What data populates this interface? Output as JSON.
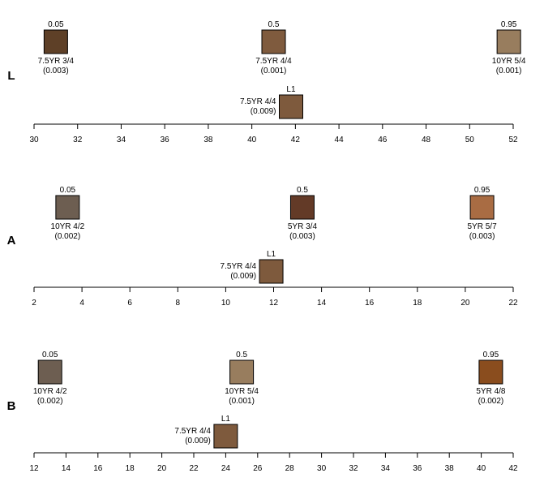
{
  "chart_data": [
    {
      "type": "scatter",
      "panel_label": "L",
      "xlim": [
        30,
        52
      ],
      "ticks": [
        30,
        32,
        34,
        36,
        38,
        40,
        42,
        44,
        46,
        48,
        50,
        52
      ],
      "quantiles": [
        {
          "q": "0.05",
          "x": 31.0,
          "munsell": "7.5YR 3/4",
          "de": "(0.003)",
          "color": "#5e4027"
        },
        {
          "q": "0.5",
          "x": 41.0,
          "munsell": "7.5YR 4/4",
          "de": "(0.001)",
          "color": "#7f5b3e"
        },
        {
          "q": "0.95",
          "x": 51.8,
          "munsell": "10YR 5/4",
          "de": "(0.001)",
          "color": "#987d5e"
        }
      ],
      "l1": {
        "label": "L1",
        "x": 41.8,
        "munsell": "7.5YR 4/4",
        "de": "(0.009)",
        "color": "#7e5a3d"
      }
    },
    {
      "type": "scatter",
      "panel_label": "A",
      "xlim": [
        2,
        22
      ],
      "ticks": [
        2,
        4,
        6,
        8,
        10,
        12,
        14,
        16,
        18,
        20,
        22
      ],
      "quantiles": [
        {
          "q": "0.05",
          "x": 3.4,
          "munsell": "10YR 4/2",
          "de": "(0.002)",
          "color": "#6d5e51"
        },
        {
          "q": "0.5",
          "x": 13.2,
          "munsell": "5YR 3/4",
          "de": "(0.003)",
          "color": "#633a27"
        },
        {
          "q": "0.95",
          "x": 20.7,
          "munsell": "5YR 5/7",
          "de": "(0.003)",
          "color": "#a96c43"
        }
      ],
      "l1": {
        "label": "L1",
        "x": 11.9,
        "munsell": "7.5YR 4/4",
        "de": "(0.009)",
        "color": "#7e5a3d"
      }
    },
    {
      "type": "scatter",
      "panel_label": "B",
      "xlim": [
        12,
        42
      ],
      "ticks": [
        12,
        14,
        16,
        18,
        20,
        22,
        24,
        26,
        28,
        30,
        32,
        34,
        36,
        38,
        40,
        42
      ],
      "quantiles": [
        {
          "q": "0.05",
          "x": 13.0,
          "munsell": "10YR 4/2",
          "de": "(0.002)",
          "color": "#6d5e51"
        },
        {
          "q": "0.5",
          "x": 25.0,
          "munsell": "10YR 5/4",
          "de": "(0.001)",
          "color": "#987d5e"
        },
        {
          "q": "0.95",
          "x": 40.6,
          "munsell": "5YR 4/8",
          "de": "(0.002)",
          "color": "#8a4d1e"
        }
      ],
      "l1": {
        "label": "L1",
        "x": 24.0,
        "munsell": "7.5YR 4/4",
        "de": "(0.009)",
        "color": "#7e5a3d"
      }
    }
  ]
}
